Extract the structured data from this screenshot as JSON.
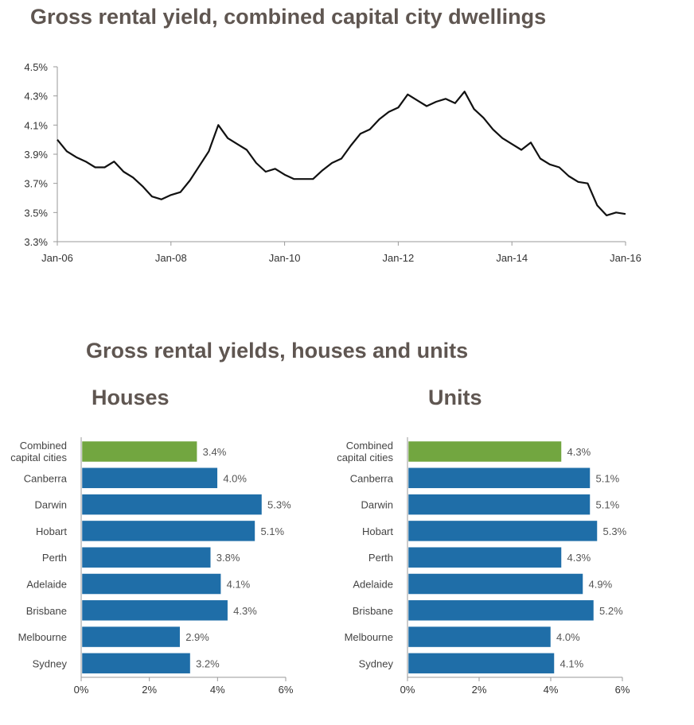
{
  "titles": {
    "line": "Gross rental yield, combined capital city dwellings",
    "bars": "Gross rental yields, houses and units",
    "houses": "Houses",
    "units": "Units"
  },
  "colors": {
    "line": "#111111",
    "bar": "#1f6ea8",
    "highlight": "#72a640",
    "axis": "#9a9a9a"
  },
  "chart_data": [
    {
      "type": "line",
      "title": "Gross rental yield, combined capital city dwellings",
      "x_tick_labels": [
        "Jan-06",
        "Jan-08",
        "Jan-10",
        "Jan-12",
        "Jan-14",
        "Jan-16"
      ],
      "y_tick_labels": [
        "3.3%",
        "3.5%",
        "3.7%",
        "3.9%",
        "4.1%",
        "4.3%",
        "4.5%"
      ],
      "ylim": [
        3.3,
        4.5
      ],
      "xlim": [
        "2006-01",
        "2016-01"
      ],
      "grid": false,
      "series": [
        {
          "x": [
            "2006-01",
            "2006-03",
            "2006-05",
            "2006-07",
            "2006-09",
            "2006-11",
            "2007-01",
            "2007-03",
            "2007-05",
            "2007-07",
            "2007-09",
            "2007-11",
            "2008-01",
            "2008-03",
            "2008-05",
            "2008-07",
            "2008-09",
            "2008-11",
            "2009-01",
            "2009-03",
            "2009-05",
            "2009-07",
            "2009-09",
            "2009-11",
            "2010-01",
            "2010-03",
            "2010-05",
            "2010-07",
            "2010-09",
            "2010-11",
            "2011-01",
            "2011-03",
            "2011-05",
            "2011-07",
            "2011-09",
            "2011-11",
            "2012-01",
            "2012-03",
            "2012-05",
            "2012-07",
            "2012-09",
            "2012-11",
            "2013-01",
            "2013-03",
            "2013-05",
            "2013-07",
            "2013-09",
            "2013-11",
            "2014-01",
            "2014-03",
            "2014-05",
            "2014-07",
            "2014-09",
            "2014-11",
            "2015-01",
            "2015-03",
            "2015-05",
            "2015-07",
            "2015-09",
            "2015-11",
            "2016-01"
          ],
          "y": [
            4.0,
            3.92,
            3.88,
            3.85,
            3.81,
            3.81,
            3.85,
            3.78,
            3.74,
            3.68,
            3.61,
            3.59,
            3.62,
            3.64,
            3.72,
            3.82,
            3.92,
            4.1,
            4.01,
            3.97,
            3.93,
            3.84,
            3.78,
            3.8,
            3.76,
            3.73,
            3.73,
            3.73,
            3.79,
            3.84,
            3.87,
            3.96,
            4.04,
            4.07,
            4.14,
            4.19,
            4.22,
            4.31,
            4.27,
            4.23,
            4.26,
            4.28,
            4.25,
            4.33,
            4.21,
            4.15,
            4.07,
            4.01,
            3.97,
            3.93,
            3.98,
            3.87,
            3.83,
            3.81,
            3.75,
            3.71,
            3.7,
            3.55,
            3.48,
            3.5,
            3.49
          ]
        }
      ]
    },
    {
      "type": "bar",
      "orientation": "horizontal",
      "title": "Houses",
      "categories": [
        "Combined capital cities",
        "Canberra",
        "Darwin",
        "Hobart",
        "Perth",
        "Adelaide",
        "Brisbane",
        "Melbourne",
        "Sydney"
      ],
      "values": [
        3.4,
        4.0,
        5.3,
        5.1,
        3.8,
        4.1,
        4.3,
        2.9,
        3.2
      ],
      "value_labels": [
        "3.4%",
        "4.0%",
        "5.3%",
        "5.1%",
        "3.8%",
        "4.1%",
        "4.3%",
        "2.9%",
        "3.2%"
      ],
      "xlim": [
        0,
        6
      ],
      "x_tick_labels": [
        "0%",
        "2%",
        "4%",
        "6%"
      ],
      "highlight_index": 0
    },
    {
      "type": "bar",
      "orientation": "horizontal",
      "title": "Units",
      "categories": [
        "Combined capital cities",
        "Canberra",
        "Darwin",
        "Hobart",
        "Perth",
        "Adelaide",
        "Brisbane",
        "Melbourne",
        "Sydney"
      ],
      "values": [
        4.3,
        5.1,
        5.1,
        5.3,
        4.3,
        4.9,
        5.2,
        4.0,
        4.1
      ],
      "value_labels": [
        "4.3%",
        "5.1%",
        "5.1%",
        "5.3%",
        "4.3%",
        "4.9%",
        "5.2%",
        "4.0%",
        "4.1%"
      ],
      "xlim": [
        0,
        6
      ],
      "x_tick_labels": [
        "0%",
        "2%",
        "4%",
        "6%"
      ],
      "highlight_index": 0
    }
  ]
}
